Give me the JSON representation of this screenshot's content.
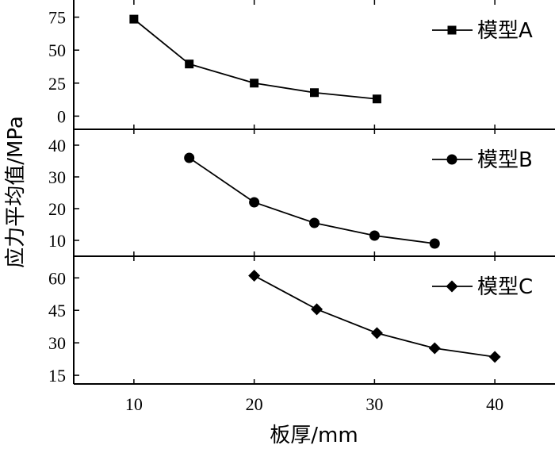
{
  "chart_data": {
    "type": "line",
    "layout": "stacked-panels-shared-x",
    "xlabel": "板厚/mm",
    "ylabel": "应力平均值/MPa",
    "xlim": [
      5,
      45
    ],
    "xticks": [
      10,
      20,
      30,
      40
    ],
    "grid": false,
    "legend_position": "top-right",
    "panels": [
      {
        "name": "模型A",
        "marker": "square",
        "ylim": [
          -10,
          88
        ],
        "yticks": [
          0,
          25,
          50,
          75
        ],
        "x": [
          10,
          14.6,
          20,
          25,
          30.2
        ],
        "y": [
          73.5,
          39.5,
          25,
          17.8,
          13
        ]
      },
      {
        "name": "模型B",
        "marker": "circle",
        "ylim": [
          5,
          45
        ],
        "yticks": [
          10,
          20,
          30,
          40
        ],
        "x": [
          14.6,
          20,
          25,
          30,
          35
        ],
        "y": [
          36,
          22,
          15.5,
          11.5,
          9
        ]
      },
      {
        "name": "模型C",
        "marker": "diamond",
        "ylim": [
          11,
          70
        ],
        "yticks": [
          15,
          30,
          45,
          60
        ],
        "x": [
          20,
          25.2,
          30.2,
          35,
          40
        ],
        "y": [
          61,
          45.5,
          34.5,
          27.5,
          23.5
        ]
      }
    ]
  }
}
